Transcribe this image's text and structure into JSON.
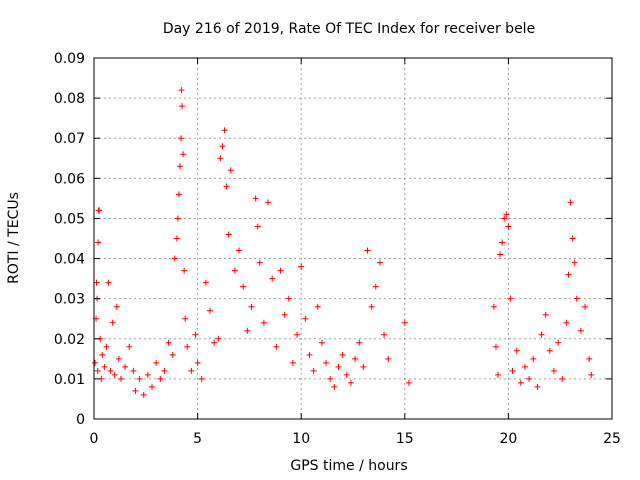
{
  "chart_data": {
    "type": "scatter",
    "title": "Day 216 of 2019, Rate Of TEC Index for receiver bele",
    "xlabel": "GPS time / hours",
    "ylabel": "ROTI / TECUs",
    "xlim": [
      0,
      25
    ],
    "ylim": [
      0,
      0.09
    ],
    "xticks": [
      "0",
      "5",
      "10",
      "15",
      "20",
      "25"
    ],
    "yticks": [
      "0",
      "0.01",
      "0.02",
      "0.03",
      "0.04",
      "0.05",
      "0.06",
      "0.07",
      "0.08",
      "0.09"
    ],
    "xtick_values": [
      0,
      5,
      10,
      15,
      20,
      25
    ],
    "ytick_values": [
      0,
      0.01,
      0.02,
      0.03,
      0.04,
      0.05,
      0.06,
      0.07,
      0.08,
      0.09
    ],
    "grid": true,
    "marker": "+",
    "color": "#ff0000",
    "series": [
      {
        "values": [
          [
            0.05,
            0.014
          ],
          [
            0.1,
            0.025
          ],
          [
            0.12,
            0.034
          ],
          [
            0.15,
            0.03
          ],
          [
            0.18,
            0.012
          ],
          [
            0.2,
            0.044
          ],
          [
            0.22,
            0.052
          ],
          [
            0.25,
            0.052
          ],
          [
            0.3,
            0.02
          ],
          [
            0.35,
            0.01
          ],
          [
            0.4,
            0.016
          ],
          [
            0.5,
            0.013
          ],
          [
            0.6,
            0.018
          ],
          [
            0.7,
            0.034
          ],
          [
            0.8,
            0.012
          ],
          [
            0.9,
            0.024
          ],
          [
            1.0,
            0.011
          ],
          [
            1.1,
            0.028
          ],
          [
            1.2,
            0.015
          ],
          [
            1.3,
            0.01
          ],
          [
            1.5,
            0.013
          ],
          [
            1.7,
            0.018
          ],
          [
            1.9,
            0.012
          ],
          [
            2.0,
            0.007
          ],
          [
            2.2,
            0.01
          ],
          [
            2.4,
            0.006
          ],
          [
            2.6,
            0.011
          ],
          [
            2.8,
            0.008
          ],
          [
            3.0,
            0.014
          ],
          [
            3.2,
            0.01
          ],
          [
            3.4,
            0.012
          ],
          [
            3.6,
            0.019
          ],
          [
            3.8,
            0.016
          ],
          [
            3.9,
            0.04
          ],
          [
            4.0,
            0.045
          ],
          [
            4.05,
            0.05
          ],
          [
            4.1,
            0.056
          ],
          [
            4.15,
            0.063
          ],
          [
            4.2,
            0.07
          ],
          [
            4.22,
            0.082
          ],
          [
            4.25,
            0.078
          ],
          [
            4.3,
            0.066
          ],
          [
            4.35,
            0.037
          ],
          [
            4.4,
            0.025
          ],
          [
            4.5,
            0.018
          ],
          [
            4.7,
            0.012
          ],
          [
            4.9,
            0.021
          ],
          [
            5.0,
            0.014
          ],
          [
            5.2,
            0.01
          ],
          [
            5.4,
            0.034
          ],
          [
            5.6,
            0.027
          ],
          [
            5.8,
            0.019
          ],
          [
            6.0,
            0.02
          ],
          [
            6.1,
            0.065
          ],
          [
            6.2,
            0.068
          ],
          [
            6.3,
            0.072
          ],
          [
            6.4,
            0.058
          ],
          [
            6.5,
            0.046
          ],
          [
            6.6,
            0.062
          ],
          [
            6.8,
            0.037
          ],
          [
            7.0,
            0.042
          ],
          [
            7.2,
            0.033
          ],
          [
            7.4,
            0.022
          ],
          [
            7.6,
            0.028
          ],
          [
            7.8,
            0.055
          ],
          [
            7.9,
            0.048
          ],
          [
            8.0,
            0.039
          ],
          [
            8.2,
            0.024
          ],
          [
            8.4,
            0.054
          ],
          [
            8.6,
            0.035
          ],
          [
            8.8,
            0.018
          ],
          [
            9.0,
            0.037
          ],
          [
            9.2,
            0.026
          ],
          [
            9.4,
            0.03
          ],
          [
            9.6,
            0.014
          ],
          [
            9.8,
            0.021
          ],
          [
            10.0,
            0.038
          ],
          [
            10.2,
            0.025
          ],
          [
            10.4,
            0.016
          ],
          [
            10.6,
            0.012
          ],
          [
            10.8,
            0.028
          ],
          [
            11.0,
            0.019
          ],
          [
            11.2,
            0.014
          ],
          [
            11.4,
            0.01
          ],
          [
            11.6,
            0.008
          ],
          [
            11.8,
            0.013
          ],
          [
            12.0,
            0.016
          ],
          [
            12.2,
            0.011
          ],
          [
            12.4,
            0.009
          ],
          [
            12.6,
            0.015
          ],
          [
            12.8,
            0.019
          ],
          [
            13.0,
            0.013
          ],
          [
            13.2,
            0.042
          ],
          [
            13.4,
            0.028
          ],
          [
            13.6,
            0.033
          ],
          [
            13.8,
            0.039
          ],
          [
            14.0,
            0.021
          ],
          [
            14.2,
            0.015
          ],
          [
            15.0,
            0.024
          ],
          [
            15.2,
            0.009
          ],
          [
            19.3,
            0.028
          ],
          [
            19.4,
            0.018
          ],
          [
            19.5,
            0.011
          ],
          [
            19.6,
            0.041
          ],
          [
            19.7,
            0.044
          ],
          [
            19.8,
            0.05
          ],
          [
            19.9,
            0.051
          ],
          [
            20.0,
            0.048
          ],
          [
            20.1,
            0.03
          ],
          [
            20.2,
            0.012
          ],
          [
            20.4,
            0.017
          ],
          [
            20.6,
            0.009
          ],
          [
            20.8,
            0.013
          ],
          [
            21.0,
            0.01
          ],
          [
            21.2,
            0.015
          ],
          [
            21.4,
            0.008
          ],
          [
            21.6,
            0.021
          ],
          [
            21.8,
            0.026
          ],
          [
            22.0,
            0.017
          ],
          [
            22.2,
            0.012
          ],
          [
            22.4,
            0.019
          ],
          [
            22.6,
            0.01
          ],
          [
            22.8,
            0.024
          ],
          [
            22.9,
            0.036
          ],
          [
            23.0,
            0.054
          ],
          [
            23.1,
            0.045
          ],
          [
            23.2,
            0.039
          ],
          [
            23.3,
            0.03
          ],
          [
            23.5,
            0.022
          ],
          [
            23.7,
            0.028
          ],
          [
            23.9,
            0.015
          ],
          [
            24.0,
            0.011
          ]
        ]
      }
    ]
  }
}
